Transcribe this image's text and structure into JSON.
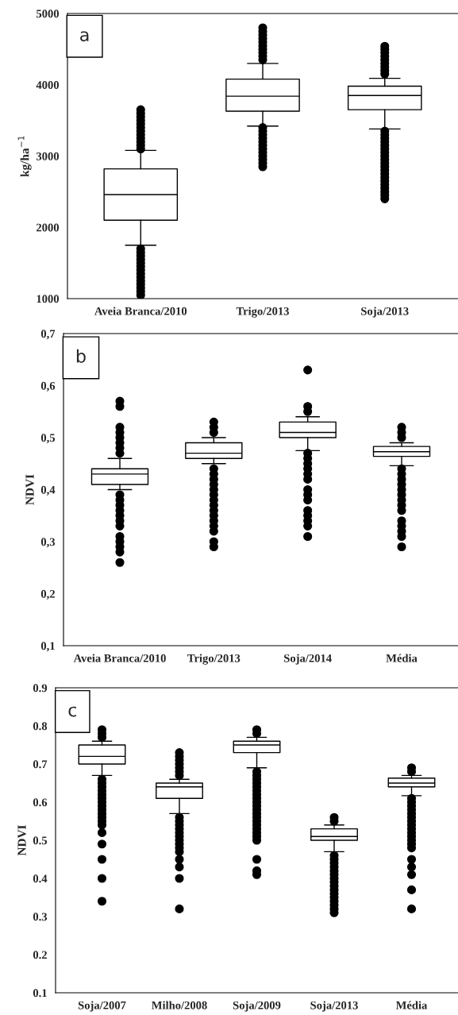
{
  "chart_data": [
    {
      "type": "box",
      "ylabel": "kg/ha$^{−1}$",
      "annotations": [
        "a"
      ],
      "categories": [
        "Aveia Branca/2010",
        "Trigo/2013",
        "Soja/2013"
      ],
      "ylim": [
        1000,
        5000
      ],
      "yticks": [
        1000,
        2000,
        3000,
        4000,
        5000
      ],
      "grid": false,
      "color": "#000000",
      "boxes": [
        {
          "low": 1750,
          "q1": 2100,
          "median": 2460,
          "q3": 2820,
          "high": 3080,
          "outliers": [
            3100,
            3150,
            3200,
            3250,
            3300,
            3350,
            3400,
            3450,
            3500,
            3550,
            3600,
            3650,
            1050,
            1100,
            1150,
            1200,
            1250,
            1300,
            1350,
            1400,
            1450,
            1500,
            1550,
            1600,
            1650,
            1700
          ]
        },
        {
          "low": 3420,
          "q1": 3630,
          "median": 3840,
          "q3": 4080,
          "high": 4300,
          "outliers": [
            4350,
            4400,
            4450,
            4500,
            4550,
            4600,
            4650,
            4700,
            4750,
            4800,
            2850,
            2900,
            2950,
            3000,
            3050,
            3100,
            3150,
            3200,
            3250,
            3300,
            3350,
            3400
          ]
        },
        {
          "low": 3380,
          "q1": 3650,
          "median": 3850,
          "q3": 3980,
          "high": 4090,
          "outliers": [
            4150,
            4200,
            4250,
            4300,
            4350,
            4400,
            4450,
            4500,
            4540,
            2400,
            2450,
            2500,
            2550,
            2600,
            2650,
            2700,
            2750,
            2800,
            2850,
            2900,
            2950,
            3000,
            3050,
            3100,
            3150,
            3200,
            3250,
            3300,
            3350
          ]
        }
      ]
    },
    {
      "type": "box",
      "ylabel": "NDVI",
      "annotations": [
        "b"
      ],
      "categories": [
        "Aveia Branca/2010",
        "Trigo/2013",
        "Soja/2014",
        "Média"
      ],
      "ylim": [
        0.1,
        0.7
      ],
      "yticks": [
        {
          "value": 0.1,
          "label": "0,1"
        },
        {
          "value": 0.2,
          "label": "0,2"
        },
        {
          "value": 0.3,
          "label": "0,3"
        },
        {
          "value": 0.4,
          "label": "0,4"
        },
        {
          "value": 0.5,
          "label": "0,5"
        },
        {
          "value": 0.6,
          "label": "0,6"
        },
        {
          "value": 0.7,
          "label": "0,7"
        }
      ],
      "grid": false,
      "color": "#000000",
      "boxes": [
        {
          "low": 0.4,
          "q1": 0.41,
          "median": 0.43,
          "q3": 0.44,
          "high": 0.46,
          "outliers": [
            0.57,
            0.56,
            0.52,
            0.51,
            0.5,
            0.49,
            0.48,
            0.47,
            0.39,
            0.38,
            0.37,
            0.36,
            0.35,
            0.34,
            0.33,
            0.31,
            0.3,
            0.29,
            0.28,
            0.26
          ]
        },
        {
          "low": 0.45,
          "q1": 0.46,
          "median": 0.47,
          "q3": 0.49,
          "high": 0.5,
          "outliers": [
            0.53,
            0.52,
            0.51,
            0.44,
            0.43,
            0.42,
            0.41,
            0.4,
            0.39,
            0.38,
            0.37,
            0.36,
            0.35,
            0.34,
            0.33,
            0.32,
            0.3,
            0.29
          ]
        },
        {
          "low": 0.475,
          "q1": 0.5,
          "median": 0.51,
          "q3": 0.53,
          "high": 0.54,
          "outliers": [
            0.63,
            0.56,
            0.55,
            0.47,
            0.46,
            0.45,
            0.44,
            0.43,
            0.42,
            0.4,
            0.39,
            0.38,
            0.36,
            0.35,
            0.34,
            0.33,
            0.31
          ]
        },
        {
          "low": 0.446,
          "q1": 0.464,
          "median": 0.473,
          "q3": 0.483,
          "high": 0.49,
          "outliers": [
            0.52,
            0.51,
            0.5,
            0.44,
            0.43,
            0.42,
            0.41,
            0.4,
            0.39,
            0.38,
            0.37,
            0.36,
            0.34,
            0.33,
            0.32,
            0.31,
            0.29
          ]
        }
      ]
    },
    {
      "type": "box",
      "ylabel": "NDVI",
      "annotations": [
        "c"
      ],
      "categories": [
        "Soja/2007",
        "Milho/2008",
        "Soja/2009",
        "Soja/2013",
        "Média"
      ],
      "ylim": [
        0.1,
        0.9
      ],
      "yticks": [
        0.1,
        0.2,
        0.3,
        0.4,
        0.5,
        0.6,
        0.7,
        0.8,
        0.9
      ],
      "grid": false,
      "color": "#000000",
      "boxes": [
        {
          "low": 0.67,
          "q1": 0.7,
          "median": 0.72,
          "q3": 0.75,
          "high": 0.76,
          "outliers": [
            0.77,
            0.78,
            0.79,
            0.66,
            0.65,
            0.64,
            0.63,
            0.62,
            0.61,
            0.6,
            0.59,
            0.58,
            0.57,
            0.56,
            0.55,
            0.54,
            0.52,
            0.49,
            0.45,
            0.4,
            0.34
          ]
        },
        {
          "low": 0.57,
          "q1": 0.61,
          "median": 0.64,
          "q3": 0.65,
          "high": 0.66,
          "outliers": [
            0.67,
            0.68,
            0.69,
            0.7,
            0.71,
            0.72,
            0.73,
            0.56,
            0.55,
            0.54,
            0.53,
            0.52,
            0.51,
            0.5,
            0.49,
            0.48,
            0.47,
            0.45,
            0.43,
            0.4,
            0.32
          ]
        },
        {
          "low": 0.69,
          "q1": 0.73,
          "median": 0.75,
          "q3": 0.76,
          "high": 0.77,
          "outliers": [
            0.78,
            0.79,
            0.68,
            0.67,
            0.66,
            0.65,
            0.64,
            0.63,
            0.62,
            0.61,
            0.6,
            0.59,
            0.58,
            0.57,
            0.56,
            0.55,
            0.54,
            0.53,
            0.52,
            0.51,
            0.5,
            0.45,
            0.42,
            0.41
          ]
        },
        {
          "low": 0.47,
          "q1": 0.5,
          "median": 0.51,
          "q3": 0.53,
          "high": 0.54,
          "outliers": [
            0.55,
            0.56,
            0.46,
            0.45,
            0.44,
            0.43,
            0.42,
            0.41,
            0.4,
            0.39,
            0.38,
            0.37,
            0.36,
            0.35,
            0.34,
            0.33,
            0.32,
            0.31
          ]
        },
        {
          "low": 0.617,
          "q1": 0.64,
          "median": 0.65,
          "q3": 0.663,
          "high": 0.67,
          "outliers": [
            0.68,
            0.69,
            0.61,
            0.6,
            0.59,
            0.58,
            0.57,
            0.56,
            0.55,
            0.54,
            0.53,
            0.52,
            0.51,
            0.5,
            0.49,
            0.48,
            0.45,
            0.43,
            0.41,
            0.37,
            0.32
          ]
        }
      ]
    }
  ]
}
